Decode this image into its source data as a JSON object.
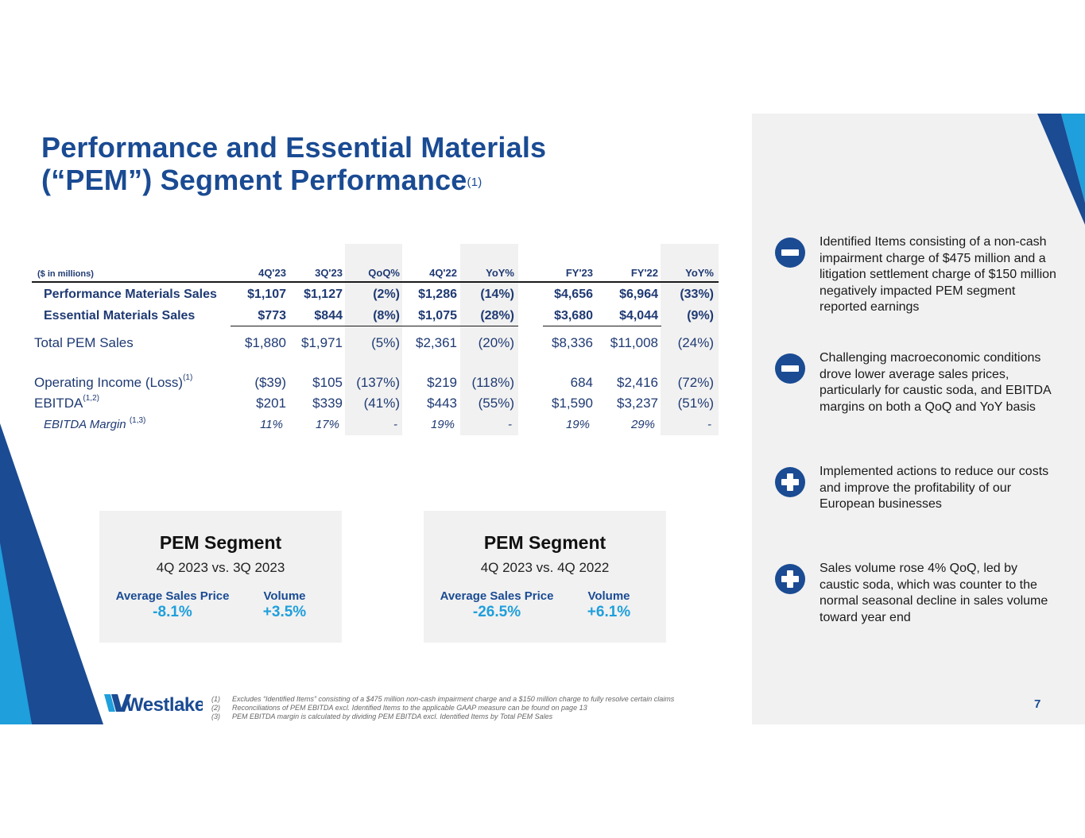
{
  "title": {
    "line1": "Performance and Essential Materials",
    "line2": "(“PEM”) Segment Performance",
    "sup": "(1)"
  },
  "table": {
    "unit_label": "($ in millions)",
    "columns": [
      "4Q'23",
      "3Q'23",
      "QoQ%",
      "4Q'22",
      "YoY%",
      "FY'23",
      "FY'22",
      "YoY%"
    ],
    "rows": [
      {
        "label": "Performance Materials Sales",
        "sup": "",
        "values": [
          "$1,107",
          "$1,127",
          "(2%)",
          "$1,286",
          "(14%)",
          "$4,656",
          "$6,964",
          "(33%)"
        ]
      },
      {
        "label": "Essential Materials Sales",
        "sup": "",
        "values": [
          "$773",
          "$844",
          "(8%)",
          "$1,075",
          "(28%)",
          "$3,680",
          "$4,044",
          "(9%)"
        ]
      },
      {
        "label": "Total PEM Sales",
        "sup": "",
        "values": [
          "$1,880",
          "$1,971",
          "(5%)",
          "$2,361",
          "(20%)",
          "$8,336",
          "$11,008",
          "(24%)"
        ]
      },
      {
        "label": "Operating Income (Loss)",
        "sup": "(1)",
        "values": [
          "($39)",
          "$105",
          "(137%)",
          "$219",
          "(118%)",
          "684",
          "$2,416",
          "(72%)"
        ]
      },
      {
        "label": "EBITDA",
        "sup": "(1,2)",
        "values": [
          "$201",
          "$339",
          "(41%)",
          "$443",
          "(55%)",
          "$1,590",
          "$3,237",
          "(51%)"
        ]
      },
      {
        "label": "EBITDA Margin ",
        "sup": "(1,3)",
        "values": [
          "11%",
          "17%",
          "-",
          "19%",
          "-",
          "19%",
          "29%",
          "-"
        ]
      }
    ]
  },
  "segments": [
    {
      "title": "PEM Segment",
      "subtitle": "4Q 2023 vs. 3Q 2023",
      "price_label": "Average Sales Price",
      "price_value": "-8.1%",
      "volume_label": "Volume",
      "volume_value": "+3.5%"
    },
    {
      "title": "PEM Segment",
      "subtitle": "4Q 2023 vs. 4Q 2022",
      "price_label": "Average Sales Price",
      "price_value": "-26.5%",
      "volume_label": "Volume",
      "volume_value": "+6.1%"
    }
  ],
  "bullets": [
    {
      "type": "minus",
      "text": "Identified Items consisting of a non-cash impairment charge of $475 million and a litigation settlement charge of $150 million negatively impacted PEM segment reported earnings"
    },
    {
      "type": "minus",
      "text": "Challenging macroeconomic conditions drove lower average sales prices, particularly for caustic soda, and EBITDA margins on both a QoQ and YoY basis"
    },
    {
      "type": "plus",
      "text": "Implemented actions to reduce our costs and improve the profitability of our European businesses"
    },
    {
      "type": "plus",
      "text": "Sales volume rose 4% QoQ, led by caustic soda, which was counter to the normal seasonal decline in sales volume toward year end"
    }
  ],
  "footnotes": [
    {
      "num": "(1)",
      "text": "Excludes “Identified Items” consisting of a $475 million non-cash impairment charge and a $150 million charge to fully resolve certain claims"
    },
    {
      "num": "(2)",
      "text": "Reconciliations of PEM EBITDA excl. Identified Items to the applicable GAAP measure can be found on page 13"
    },
    {
      "num": "(3)",
      "text": "PEM EBITDA margin is calculated by dividing PEM EBITDA excl. Identified Items by Total PEM Sales"
    }
  ],
  "logo_text": "Westlake",
  "page_number": "7",
  "colors": {
    "navy": "#1a4b93",
    "cyan": "#1f9fdc",
    "panel": "#f1f1f1"
  }
}
